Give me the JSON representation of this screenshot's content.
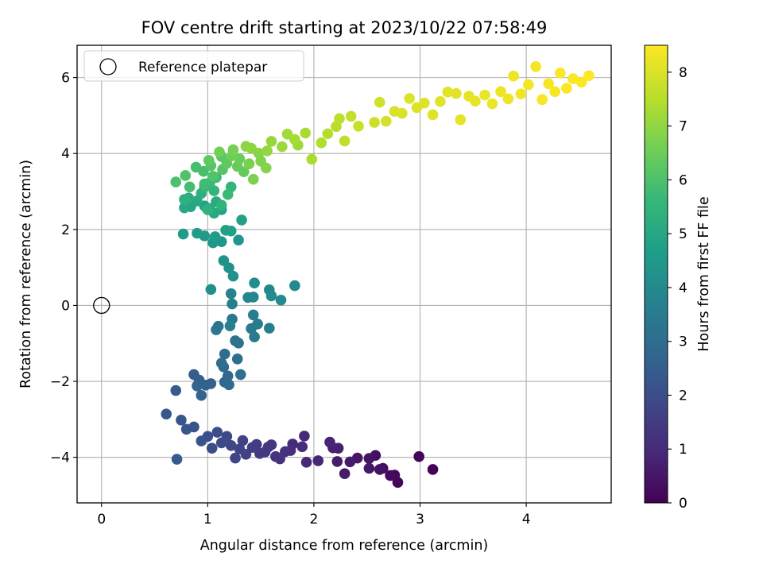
{
  "chart_data": {
    "type": "scatter",
    "title": "FOV centre drift starting at 2023/10/22 07:58:49",
    "xlabel": "Angular distance from reference (arcmin)",
    "ylabel": "Rotation from reference (arcmin)",
    "xlim": [
      -0.23,
      4.8
    ],
    "ylim": [
      -5.2,
      6.85
    ],
    "xticks": [
      0,
      1,
      2,
      3,
      4
    ],
    "yticks": [
      -4,
      -2,
      0,
      2,
      4,
      6
    ],
    "grid": true,
    "legend": {
      "placement": "top-left",
      "entries": [
        "Reference platepar"
      ]
    },
    "reference_point": {
      "x": 0,
      "y": 0,
      "label": "Reference platepar"
    },
    "colorbar": {
      "label": "Hours from first FF file",
      "colormap": "viridis",
      "range": [
        0,
        8.5
      ],
      "ticks": [
        0,
        1,
        2,
        3,
        4,
        5,
        6,
        7,
        8
      ]
    },
    "colormap_stops": [
      "#440154",
      "#482878",
      "#3e4989",
      "#31688e",
      "#26828e",
      "#1f9e89",
      "#35b779",
      "#6ece58",
      "#b5de2b",
      "#fde725"
    ],
    "series_points": [
      [
        3.12,
        -4.32,
        0.05
      ],
      [
        2.99,
        -3.98,
        0.1
      ],
      [
        2.79,
        -4.66,
        0.15
      ],
      [
        2.76,
        -4.47,
        0.2
      ],
      [
        2.72,
        -4.48,
        0.25
      ],
      [
        2.65,
        -4.29,
        0.3
      ],
      [
        2.58,
        -3.95,
        0.35
      ],
      [
        2.62,
        -4.32,
        0.4
      ],
      [
        2.52,
        -4.03,
        0.45
      ],
      [
        2.41,
        -4.02,
        0.5
      ],
      [
        2.52,
        -4.29,
        0.55
      ],
      [
        2.34,
        -4.12,
        0.6
      ],
      [
        2.29,
        -4.43,
        0.65
      ],
      [
        2.22,
        -4.11,
        0.7
      ],
      [
        2.23,
        -3.76,
        0.75
      ],
      [
        2.18,
        -3.75,
        0.8
      ],
      [
        2.15,
        -3.6,
        0.85
      ],
      [
        2.04,
        -4.09,
        0.9
      ],
      [
        1.93,
        -4.13,
        0.95
      ],
      [
        1.91,
        -3.44,
        1.0
      ],
      [
        1.89,
        -3.72,
        1.05
      ],
      [
        1.8,
        -3.65,
        1.1
      ],
      [
        1.78,
        -3.82,
        1.15
      ],
      [
        1.73,
        -3.85,
        1.2
      ],
      [
        1.68,
        -4.04,
        1.25
      ],
      [
        1.64,
        -3.98,
        1.3
      ],
      [
        1.6,
        -3.67,
        1.35
      ],
      [
        1.57,
        -3.73,
        1.4
      ],
      [
        1.54,
        -3.86,
        1.45
      ],
      [
        1.49,
        -3.9,
        1.5
      ],
      [
        1.46,
        -3.66,
        1.55
      ],
      [
        1.42,
        -3.74,
        1.6
      ],
      [
        1.36,
        -3.92,
        1.65
      ],
      [
        1.33,
        -3.56,
        1.7
      ],
      [
        1.3,
        -3.78,
        1.75
      ],
      [
        1.26,
        -4.02,
        1.8
      ],
      [
        1.22,
        -3.69,
        1.85
      ],
      [
        1.18,
        -3.45,
        1.9
      ],
      [
        1.13,
        -3.62,
        1.95
      ],
      [
        1.09,
        -3.34,
        2.0
      ],
      [
        1.04,
        -3.76,
        2.05
      ],
      [
        1.0,
        -3.45,
        2.1
      ],
      [
        0.94,
        -3.57,
        2.15
      ],
      [
        0.87,
        -3.2,
        2.2
      ],
      [
        0.8,
        -3.26,
        2.25
      ],
      [
        0.75,
        -3.02,
        2.3
      ],
      [
        0.61,
        -2.86,
        2.35
      ],
      [
        0.71,
        -4.05,
        2.4
      ],
      [
        0.7,
        -2.24,
        2.45
      ],
      [
        0.87,
        -1.82,
        2.5
      ],
      [
        0.92,
        -1.97,
        2.55
      ],
      [
        0.98,
        -2.1,
        2.6
      ],
      [
        1.03,
        -2.06,
        2.65
      ],
      [
        0.9,
        -2.12,
        2.7
      ],
      [
        0.94,
        -2.37,
        2.75
      ],
      [
        1.16,
        -2.02,
        2.8
      ],
      [
        1.19,
        -1.86,
        2.85
      ],
      [
        1.2,
        -2.09,
        2.9
      ],
      [
        1.15,
        -1.62,
        2.95
      ],
      [
        1.13,
        -1.52,
        3.0
      ],
      [
        1.16,
        -1.28,
        3.05
      ],
      [
        1.28,
        -1.41,
        3.1
      ],
      [
        1.31,
        -1.82,
        3.15
      ],
      [
        1.26,
        -0.93,
        3.2
      ],
      [
        1.29,
        -0.99,
        3.25
      ],
      [
        1.08,
        -0.64,
        3.3
      ],
      [
        1.1,
        -0.55,
        3.35
      ],
      [
        1.23,
        -0.36,
        3.4
      ],
      [
        1.41,
        -0.61,
        3.45
      ],
      [
        1.44,
        -0.83,
        3.5
      ],
      [
        1.47,
        -0.49,
        3.55
      ],
      [
        1.43,
        -0.25,
        3.6
      ],
      [
        1.58,
        -0.6,
        3.65
      ],
      [
        1.21,
        -0.54,
        3.7
      ],
      [
        1.23,
        0.04,
        3.75
      ],
      [
        1.22,
        0.31,
        3.8
      ],
      [
        1.38,
        0.21,
        3.85
      ],
      [
        1.43,
        0.22,
        3.9
      ],
      [
        1.58,
        0.41,
        3.95
      ],
      [
        1.82,
        0.52,
        4.0
      ],
      [
        1.69,
        0.14,
        4.05
      ],
      [
        1.6,
        0.25,
        4.1
      ],
      [
        1.44,
        0.59,
        4.15
      ],
      [
        1.03,
        0.42,
        4.2
      ],
      [
        1.24,
        0.77,
        4.25
      ],
      [
        1.2,
        0.99,
        4.3
      ],
      [
        1.15,
        1.18,
        4.35
      ],
      [
        1.29,
        1.72,
        4.4
      ],
      [
        1.13,
        1.68,
        4.45
      ],
      [
        1.05,
        1.65,
        4.5
      ],
      [
        0.97,
        1.83,
        4.55
      ],
      [
        0.77,
        1.88,
        4.6
      ],
      [
        0.9,
        1.9,
        4.65
      ],
      [
        1.07,
        1.81,
        4.7
      ],
      [
        1.22,
        1.96,
        4.75
      ],
      [
        1.17,
        1.98,
        4.8
      ],
      [
        1.32,
        2.25,
        4.85
      ],
      [
        1.13,
        2.52,
        4.9
      ],
      [
        0.97,
        2.62,
        4.95
      ],
      [
        0.84,
        2.6,
        5.0
      ],
      [
        0.78,
        2.57,
        5.05
      ],
      [
        0.9,
        2.75,
        5.1
      ],
      [
        1.06,
        2.43,
        5.15
      ],
      [
        1.08,
        2.73,
        5.2
      ],
      [
        1.02,
        2.55,
        5.25
      ],
      [
        0.82,
        2.83,
        5.3
      ],
      [
        0.94,
        2.95,
        5.35
      ],
      [
        0.78,
        2.79,
        5.4
      ],
      [
        1.0,
        2.52,
        5.45
      ],
      [
        1.13,
        2.64,
        5.5
      ],
      [
        1.22,
        3.12,
        5.55
      ],
      [
        1.06,
        3.02,
        5.6
      ],
      [
        0.97,
        3.12,
        5.65
      ],
      [
        1.02,
        3.23,
        5.7
      ],
      [
        1.19,
        2.92,
        5.75
      ],
      [
        1.08,
        3.37,
        5.8
      ],
      [
        0.97,
        3.2,
        5.85
      ],
      [
        0.83,
        3.12,
        5.9
      ],
      [
        0.89,
        3.64,
        5.95
      ],
      [
        0.96,
        3.53,
        6.0
      ],
      [
        0.7,
        3.25,
        6.05
      ],
      [
        0.79,
        3.42,
        6.1
      ],
      [
        1.05,
        3.4,
        6.15
      ],
      [
        1.14,
        3.58,
        6.2
      ],
      [
        1.03,
        3.68,
        6.25
      ],
      [
        1.13,
        3.92,
        6.3
      ],
      [
        1.01,
        3.82,
        6.35
      ],
      [
        1.18,
        3.74,
        6.4
      ],
      [
        1.34,
        3.52,
        6.45
      ],
      [
        1.28,
        3.66,
        6.5
      ],
      [
        1.3,
        3.86,
        6.55
      ],
      [
        1.23,
        3.94,
        6.6
      ],
      [
        1.11,
        4.04,
        6.65
      ],
      [
        1.24,
        4.1,
        6.7
      ],
      [
        1.39,
        3.73,
        6.75
      ],
      [
        1.43,
        3.32,
        6.8
      ],
      [
        1.5,
        3.8,
        6.85
      ],
      [
        1.55,
        3.62,
        6.9
      ],
      [
        1.48,
        4.01,
        6.95
      ],
      [
        1.36,
        4.19,
        7.0
      ],
      [
        1.41,
        4.14,
        7.05
      ],
      [
        1.56,
        4.07,
        7.1
      ],
      [
        1.6,
        4.32,
        7.15
      ],
      [
        1.7,
        4.18,
        7.2
      ],
      [
        1.85,
        4.22,
        7.25
      ],
      [
        1.75,
        4.51,
        7.3
      ],
      [
        1.82,
        4.37,
        7.35
      ],
      [
        1.92,
        4.54,
        7.4
      ],
      [
        1.98,
        3.85,
        7.45
      ],
      [
        2.07,
        4.28,
        7.5
      ],
      [
        2.13,
        4.52,
        7.55
      ],
      [
        2.21,
        4.71,
        7.6
      ],
      [
        2.24,
        4.92,
        7.65
      ],
      [
        2.29,
        4.33,
        7.7
      ],
      [
        2.35,
        4.98,
        7.75
      ],
      [
        2.42,
        4.72,
        7.8
      ],
      [
        2.57,
        4.82,
        7.85
      ],
      [
        2.62,
        5.35,
        7.9
      ],
      [
        2.68,
        4.85,
        7.95
      ],
      [
        2.76,
        5.11,
        8.0
      ],
      [
        2.83,
        5.06,
        8.02
      ],
      [
        2.9,
        5.45,
        8.04
      ],
      [
        2.97,
        5.21,
        8.06
      ],
      [
        3.04,
        5.33,
        8.08
      ],
      [
        3.12,
        5.02,
        8.1
      ],
      [
        3.19,
        5.37,
        8.12
      ],
      [
        3.26,
        5.62,
        8.14
      ],
      [
        3.34,
        5.58,
        8.16
      ],
      [
        3.38,
        4.89,
        8.18
      ],
      [
        3.46,
        5.51,
        8.2
      ],
      [
        3.52,
        5.38,
        8.22
      ],
      [
        3.61,
        5.54,
        8.24
      ],
      [
        3.68,
        5.31,
        8.26
      ],
      [
        3.76,
        5.63,
        8.28
      ],
      [
        3.83,
        5.44,
        8.3
      ],
      [
        3.88,
        6.04,
        8.32
      ],
      [
        3.95,
        5.57,
        8.34
      ],
      [
        4.02,
        5.81,
        8.36
      ],
      [
        4.09,
        6.29,
        8.38
      ],
      [
        4.15,
        5.42,
        8.4
      ],
      [
        4.21,
        5.84,
        8.42
      ],
      [
        4.27,
        5.63,
        8.44
      ],
      [
        4.32,
        6.12,
        8.46
      ],
      [
        4.38,
        5.72,
        8.47
      ],
      [
        4.44,
        5.97,
        8.48
      ],
      [
        4.52,
        5.88,
        8.49
      ],
      [
        4.59,
        6.05,
        8.5
      ]
    ]
  }
}
